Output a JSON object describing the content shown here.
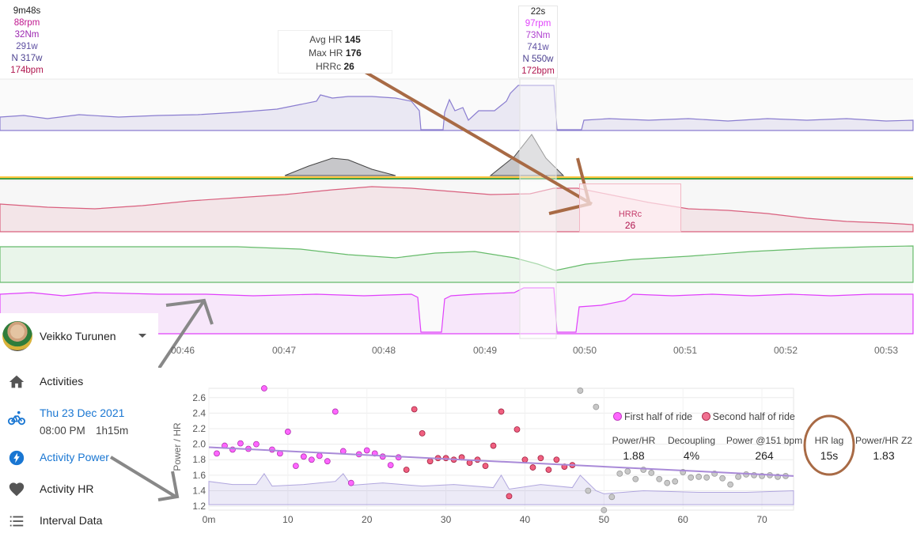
{
  "left_stats": {
    "duration": "9m48s",
    "cadence": "88rpm",
    "torque": "32Nm",
    "power": "291w",
    "norm_power": "N 317w",
    "hr": "174bpm"
  },
  "mid_stats": {
    "duration": "22s",
    "cadence": "97rpm",
    "torque": "73Nm",
    "power": "741w",
    "norm_power": "N 550w",
    "hr": "172bpm"
  },
  "tooltip": {
    "avg_label": "Avg HR",
    "avg_value": "145",
    "max_label": "Max HR",
    "max_value": "176",
    "hrrc_label": "HRRc",
    "hrrc_value": "26"
  },
  "hrrc_box": {
    "label": "HRRc",
    "value": "26"
  },
  "time_axis": [
    "00:46",
    "00:47",
    "00:48",
    "00:49",
    "00:50",
    "00:51",
    "00:52",
    "00:53"
  ],
  "sidebar": {
    "user_name": "Veikko Turunen",
    "items": [
      {
        "label": "Activities",
        "icon": "home-icon"
      },
      {
        "label": "Thu 23 Dec 2021",
        "sub_time": "08:00 PM",
        "sub_duration": "1h15m",
        "icon": "bike-icon"
      },
      {
        "label": "Activity Power",
        "icon": "bolt-icon"
      },
      {
        "label": "Activity HR",
        "icon": "heart-icon"
      },
      {
        "label": "Interval Data",
        "icon": "list-icon"
      }
    ]
  },
  "colors": {
    "power": "#7b68c4",
    "hr": "#d9607e",
    "w_bal": "#4caf50",
    "cadence": "#e040fb",
    "annotation": "#a0623c",
    "first_half": "#ff66ff",
    "second_half": "#f06080"
  },
  "metrics": [
    {
      "label": "Power/HR",
      "value": "1.88"
    },
    {
      "label": "Decoupling",
      "value": "4%"
    },
    {
      "label": "Power @151 bpm",
      "value": "264"
    },
    {
      "label": "HR lag",
      "value": "15s"
    },
    {
      "label": "Power/HR Z2",
      "value": "1.83"
    }
  ],
  "chart_data": {
    "type": "scatter",
    "ylabel": "Power / HR",
    "x_ticks": [
      "0m",
      "10",
      "20",
      "30",
      "40",
      "50",
      "60",
      "70"
    ],
    "y_ticks": [
      "1.2",
      "1.4",
      "1.6",
      "1.8",
      "2.0",
      "2.2",
      "2.4",
      "2.6"
    ],
    "xlim": [
      0,
      74
    ],
    "ylim": [
      1.15,
      2.72
    ],
    "legend": [
      "First half of ride",
      "Second half of ride"
    ],
    "series": [
      {
        "name": "First half of ride",
        "x": [
          1,
          2,
          3,
          4,
          5,
          6,
          7,
          8,
          9,
          10,
          11,
          12,
          13,
          14,
          15,
          16,
          17,
          18,
          19,
          20,
          21,
          22,
          23,
          24
        ],
        "y": [
          1.88,
          1.98,
          1.93,
          2.01,
          1.94,
          2.0,
          2.72,
          1.93,
          1.88,
          2.16,
          1.72,
          1.84,
          1.8,
          1.85,
          1.78,
          2.42,
          1.91,
          1.5,
          1.87,
          1.92,
          1.88,
          1.84,
          1.73,
          1.83
        ]
      },
      {
        "name": "Second half of ride",
        "x": [
          25,
          26,
          27,
          28,
          29,
          30,
          31,
          32,
          33,
          34,
          35,
          36,
          37,
          38,
          39,
          40,
          41,
          42,
          43,
          44,
          45,
          46
        ],
        "y": [
          1.67,
          2.45,
          2.14,
          1.78,
          1.82,
          1.82,
          1.8,
          1.83,
          1.76,
          1.8,
          1.72,
          1.98,
          2.42,
          1.33,
          2.19,
          1.8,
          1.7,
          1.82,
          1.67,
          1.8,
          1.71,
          1.73
        ]
      },
      {
        "name": "",
        "x": [
          47,
          48,
          49,
          50,
          51,
          52,
          53,
          54,
          55,
          56,
          57,
          58,
          59,
          60,
          61,
          62,
          63,
          64,
          65,
          66,
          67,
          68,
          69,
          70,
          71,
          72,
          73
        ],
        "y": [
          2.69,
          1.4,
          2.48,
          1.15,
          1.32,
          1.62,
          1.65,
          1.55,
          1.67,
          1.63,
          1.55,
          1.5,
          1.52,
          1.64,
          1.57,
          1.58,
          1.57,
          1.62,
          1.56,
          1.48,
          1.58,
          1.61,
          1.6,
          1.59,
          1.6,
          1.58,
          1.59
        ]
      }
    ],
    "trendline": {
      "x": [
        0,
        74
      ],
      "y": [
        1.96,
        1.59
      ]
    }
  }
}
